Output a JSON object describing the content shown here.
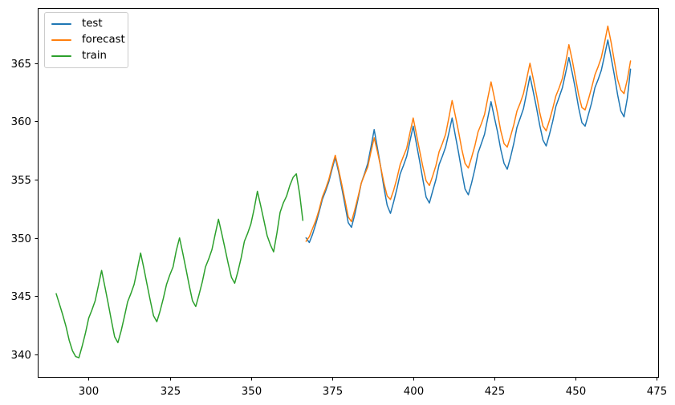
{
  "figure": {
    "background": "#ffffff"
  },
  "legend": {
    "position": "upper left",
    "items": [
      {
        "label": "test",
        "color": "#1f77b4"
      },
      {
        "label": "forecast",
        "color": "#ff7f0e"
      },
      {
        "label": "train",
        "color": "#2ca02c"
      }
    ]
  },
  "chart_data": {
    "type": "line",
    "title": "",
    "xlabel": "",
    "ylabel": "",
    "grid": false,
    "legend_position": "upper left",
    "xlim": [
      284.3,
      475.5
    ],
    "ylim": [
      338.05,
      369.75
    ],
    "xticks": [
      300,
      325,
      350,
      375,
      400,
      425,
      450,
      475
    ],
    "yticks": [
      340,
      345,
      350,
      355,
      360,
      365
    ],
    "series": [
      {
        "name": "test",
        "color": "#1f77b4",
        "x": [
          367,
          368,
          369,
          370,
          371,
          372,
          373,
          374,
          375,
          376,
          377,
          378,
          379,
          380,
          381,
          382,
          383,
          384,
          385,
          386,
          387,
          388,
          389,
          390,
          391,
          392,
          393,
          394,
          395,
          396,
          397,
          398,
          399,
          400,
          401,
          402,
          403,
          404,
          405,
          406,
          407,
          408,
          409,
          410,
          411,
          412,
          413,
          414,
          415,
          416,
          417,
          418,
          419,
          420,
          421,
          422,
          423,
          424,
          425,
          426,
          427,
          428,
          429,
          430,
          431,
          432,
          433,
          434,
          435,
          436,
          437,
          438,
          439,
          440,
          441,
          442,
          443,
          444,
          445,
          446,
          447,
          448,
          449,
          450,
          451,
          452,
          453,
          454,
          455,
          456,
          457,
          458,
          459,
          460,
          461,
          462,
          463,
          464,
          465,
          466,
          467
        ],
        "y": [
          350.0,
          349.6,
          350.3,
          351.2,
          352.2,
          353.3,
          354.0,
          354.8,
          355.9,
          356.9,
          355.7,
          354.3,
          352.8,
          351.3,
          350.9,
          352.0,
          353.3,
          354.7,
          355.5,
          356.4,
          357.8,
          359.3,
          357.7,
          356.1,
          354.3,
          352.8,
          352.1,
          353.1,
          354.2,
          355.5,
          356.2,
          357.0,
          358.3,
          359.6,
          358.1,
          356.6,
          355.0,
          353.5,
          353.0,
          354.0,
          355.0,
          356.3,
          357.0,
          357.8,
          359.0,
          360.3,
          358.8,
          357.3,
          355.7,
          354.2,
          353.7,
          354.7,
          355.9,
          357.3,
          358.1,
          358.9,
          360.3,
          361.7,
          360.4,
          359.1,
          357.6,
          356.4,
          355.9,
          356.9,
          358.1,
          359.5,
          360.3,
          361.1,
          362.5,
          363.9,
          362.6,
          361.2,
          359.7,
          358.4,
          357.9,
          358.9,
          360.0,
          361.3,
          362.1,
          362.9,
          364.2,
          365.5,
          364.2,
          362.8,
          361.2,
          359.9,
          359.6,
          360.6,
          361.6,
          362.9,
          363.6,
          364.4,
          365.7,
          367.0,
          365.5,
          364.0,
          362.3,
          360.9,
          360.4,
          362.0,
          364.5
        ]
      },
      {
        "name": "forecast",
        "color": "#ff7f0e",
        "x": [
          367,
          368,
          369,
          370,
          371,
          372,
          373,
          374,
          375,
          376,
          377,
          378,
          379,
          380,
          381,
          382,
          383,
          384,
          385,
          386,
          387,
          388,
          389,
          390,
          391,
          392,
          393,
          394,
          395,
          396,
          397,
          398,
          399,
          400,
          401,
          402,
          403,
          404,
          405,
          406,
          407,
          408,
          409,
          410,
          411,
          412,
          413,
          414,
          415,
          416,
          417,
          418,
          419,
          420,
          421,
          422,
          423,
          424,
          425,
          426,
          427,
          428,
          429,
          430,
          431,
          432,
          433,
          434,
          435,
          436,
          437,
          438,
          439,
          440,
          441,
          442,
          443,
          444,
          445,
          446,
          447,
          448,
          449,
          450,
          451,
          452,
          453,
          454,
          455,
          456,
          457,
          458,
          459,
          460,
          461,
          462,
          463,
          464,
          465,
          466,
          467
        ],
        "y": [
          349.7,
          350.1,
          350.8,
          351.5,
          352.4,
          353.5,
          354.2,
          355.0,
          356.1,
          357.1,
          355.9,
          354.6,
          353.2,
          351.8,
          351.4,
          352.4,
          353.5,
          354.7,
          355.4,
          356.1,
          357.4,
          358.6,
          357.4,
          356.1,
          354.7,
          353.6,
          353.3,
          354.1,
          355.1,
          356.3,
          357.0,
          357.7,
          359.0,
          360.3,
          358.9,
          357.5,
          356.1,
          354.9,
          354.5,
          355.3,
          356.2,
          357.4,
          358.1,
          358.9,
          360.3,
          361.8,
          360.5,
          359.1,
          357.6,
          356.4,
          356.0,
          356.9,
          357.9,
          359.1,
          359.8,
          360.6,
          362.0,
          363.4,
          362.1,
          360.7,
          359.2,
          358.1,
          357.8,
          358.7,
          359.7,
          360.9,
          361.6,
          362.4,
          363.7,
          365.0,
          363.7,
          362.3,
          360.8,
          359.6,
          359.2,
          360.1,
          361.1,
          362.2,
          362.9,
          363.7,
          365.1,
          366.6,
          365.3,
          363.8,
          362.3,
          361.2,
          361.0,
          361.9,
          362.9,
          364.0,
          364.7,
          365.5,
          366.8,
          368.2,
          366.8,
          365.2,
          363.6,
          362.7,
          362.4,
          363.6,
          365.2
        ]
      },
      {
        "name": "train",
        "color": "#2ca02c",
        "x": [
          290,
          291,
          292,
          293,
          294,
          295,
          296,
          297,
          298,
          299,
          300,
          301,
          302,
          303,
          304,
          305,
          306,
          307,
          308,
          309,
          310,
          311,
          312,
          313,
          314,
          315,
          316,
          317,
          318,
          319,
          320,
          321,
          322,
          323,
          324,
          325,
          326,
          327,
          328,
          329,
          330,
          331,
          332,
          333,
          334,
          335,
          336,
          337,
          338,
          339,
          340,
          341,
          342,
          343,
          344,
          345,
          346,
          347,
          348,
          349,
          350,
          351,
          352,
          353,
          354,
          355,
          356,
          357,
          358,
          359,
          360,
          361,
          362,
          363,
          364,
          365,
          366
        ],
        "y": [
          345.2,
          344.3,
          343.4,
          342.4,
          341.2,
          340.3,
          339.8,
          339.7,
          340.7,
          341.8,
          343.1,
          343.8,
          344.6,
          345.9,
          347.2,
          345.8,
          344.4,
          342.9,
          341.5,
          341.0,
          342.0,
          343.2,
          344.5,
          345.2,
          346.0,
          347.3,
          348.7,
          347.4,
          346.0,
          344.6,
          343.3,
          342.8,
          343.7,
          344.8,
          346.0,
          346.8,
          347.5,
          348.9,
          350.0,
          348.7,
          347.3,
          345.9,
          344.6,
          344.1,
          345.1,
          346.2,
          347.5,
          348.2,
          349.0,
          350.3,
          351.6,
          350.4,
          349.1,
          347.8,
          346.6,
          346.1,
          347.1,
          348.3,
          349.7,
          350.4,
          351.2,
          352.5,
          354.0,
          352.8,
          351.5,
          350.2,
          349.4,
          348.8,
          350.4,
          352.2,
          353.0,
          353.6,
          354.5,
          355.2,
          355.5,
          353.8,
          351.5
        ]
      }
    ]
  }
}
